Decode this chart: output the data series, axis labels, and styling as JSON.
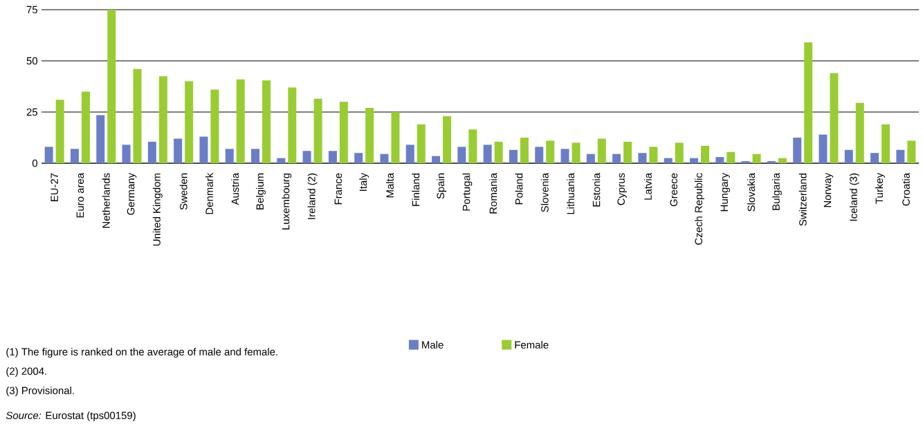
{
  "chart_data": {
    "type": "bar",
    "categories": [
      "EU-27",
      "Euro area",
      "Netherlands",
      "Germany",
      "United Kingdom",
      "Sweden",
      "Denmark",
      "Austria",
      "Belgium",
      "Luxembourg",
      "Ireland (2)",
      "France",
      "Italy",
      "Malta",
      "Finland",
      "Spain",
      "Portugal",
      "Romania",
      "Poland",
      "Slovenia",
      "Lithuania",
      "Estonia",
      "Cyprus",
      "Latvia",
      "Greece",
      "Czech Republic",
      "Hungary",
      "Slovakia",
      "Bulgaria",
      "Switzerland",
      "Norway",
      "Iceland (3)",
      "Turkey",
      "Croatia"
    ],
    "series": [
      {
        "name": "Male",
        "color": "#6a7ec6",
        "values": [
          8,
          7,
          23.5,
          9,
          10.5,
          12,
          13,
          7,
          7,
          2.5,
          6,
          6,
          5,
          4.5,
          9,
          3.5,
          8,
          9,
          6.5,
          8,
          7,
          4.5,
          4.5,
          5,
          2.5,
          2.5,
          3,
          1,
          1,
          12.5,
          14,
          6.5,
          5,
          6.5
        ]
      },
      {
        "name": "Female",
        "color": "#99cc33",
        "values": [
          31,
          35,
          75,
          46,
          42.5,
          40,
          36,
          41,
          40.5,
          37,
          31.5,
          30,
          27,
          25,
          19,
          23,
          16.5,
          10.5,
          12.5,
          11,
          10,
          12,
          10.5,
          8,
          10,
          8.5,
          5.5,
          4.5,
          2.5,
          59,
          44,
          29.5,
          19,
          11
        ]
      }
    ],
    "ylim": [
      0,
      75
    ],
    "yticks": [
      0,
      25,
      50,
      75
    ],
    "grid": "y",
    "legend": "bottom",
    "annotations": [
      "(1) The figure is ranked on the average of male and female.",
      "(2) 2004.",
      "(3) Provisional.",
      "*Source:* Eurostat (tps00159)"
    ]
  }
}
